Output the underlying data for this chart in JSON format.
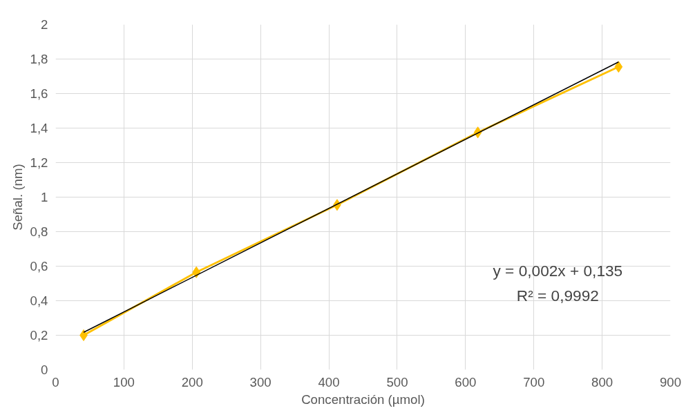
{
  "chart_data": {
    "type": "line",
    "xlabel": "Concentración (µmol)",
    "ylabel": "Señal. (nm)",
    "series": [
      {
        "color": "#ffc000",
        "marker": "diamond",
        "x": [
          41,
          206,
          412,
          618,
          824
        ],
        "values": [
          0.2,
          0.565,
          0.955,
          1.375,
          1.755
        ]
      },
      {
        "color": "#000000",
        "marker": "none",
        "x": [
          41,
          824
        ],
        "values": [
          0.217,
          1.783
        ]
      }
    ],
    "xlim": [
      0,
      900
    ],
    "xticks": [
      0,
      100,
      200,
      300,
      400,
      500,
      600,
      700,
      800,
      900
    ],
    "ylim": [
      0,
      2
    ],
    "yticks": [
      0,
      {
        "value": 0.2,
        "label": "0,2"
      },
      {
        "value": 0.4,
        "label": "0,4"
      },
      {
        "value": 0.6,
        "label": "0,6"
      },
      {
        "value": 0.8,
        "label": "0,8"
      },
      1,
      {
        "value": 1.2,
        "label": "1,2"
      },
      {
        "value": 1.4,
        "label": "1,4"
      },
      {
        "value": 1.6,
        "label": "1,6"
      },
      {
        "value": 1.8,
        "label": "1,8"
      },
      2
    ],
    "grid": true,
    "annotations": [
      "y = 0,002x + 0,135",
      "R² = 0,9992"
    ]
  }
}
